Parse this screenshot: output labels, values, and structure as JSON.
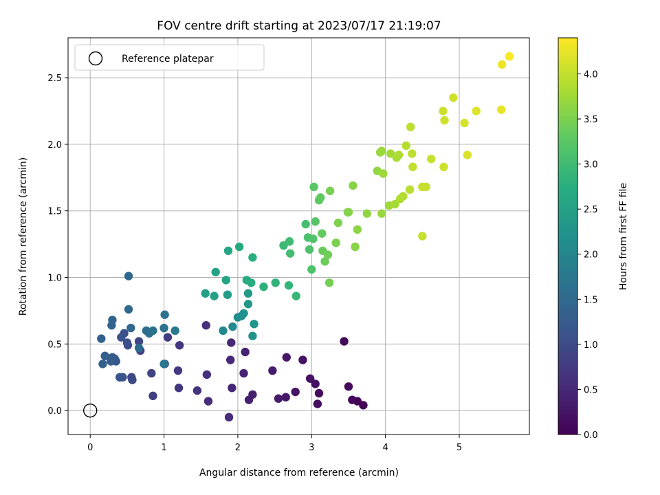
{
  "chart_data": {
    "type": "scatter",
    "title": "FOV centre drift starting at 2023/07/17 21:19:07",
    "xlabel": "Angular distance from reference (arcmin)",
    "ylabel": "Rotation from reference (arcmin)",
    "colorbar_label": "Hours from first FF file",
    "xlim": [
      -0.3,
      5.95
    ],
    "ylim": [
      -0.18,
      2.8
    ],
    "xticks": [
      0,
      1,
      2,
      3,
      4,
      5
    ],
    "yticks": [
      0.0,
      0.5,
      1.0,
      1.5,
      2.0,
      2.5
    ],
    "xtick_labels": [
      "0",
      "1",
      "2",
      "3",
      "4",
      "5"
    ],
    "ytick_labels": [
      "0.0",
      "0.5",
      "1.0",
      "1.5",
      "2.0",
      "2.5"
    ],
    "colorbar_range": [
      0.0,
      4.4
    ],
    "colorbar_ticks": [
      0.0,
      0.5,
      1.0,
      1.5,
      2.0,
      2.5,
      3.0,
      3.5,
      4.0
    ],
    "colorbar_tick_labels": [
      "0.0",
      "0.5",
      "1.0",
      "1.5",
      "2.0",
      "2.5",
      "3.0",
      "3.5",
      "4.0"
    ],
    "colormap": "viridis",
    "grid": true,
    "legend_position": "upper-left",
    "reference": {
      "label": "Reference platepar",
      "x": 0,
      "y": 0,
      "marker": "open-circle"
    },
    "points": [
      [
        3.7,
        0.04,
        0.02
      ],
      [
        3.62,
        0.07,
        0.05
      ],
      [
        3.55,
        0.08,
        0.08
      ],
      [
        3.5,
        0.18,
        0.1
      ],
      [
        3.44,
        0.52,
        0.12
      ],
      [
        3.1,
        0.13,
        0.15
      ],
      [
        3.08,
        0.05,
        0.17
      ],
      [
        3.05,
        0.2,
        0.19
      ],
      [
        2.98,
        0.24,
        0.21
      ],
      [
        2.88,
        0.38,
        0.23
      ],
      [
        2.78,
        0.14,
        0.26
      ],
      [
        2.66,
        0.4,
        0.28
      ],
      [
        2.65,
        0.1,
        0.3
      ],
      [
        2.55,
        0.09,
        0.33
      ],
      [
        2.47,
        0.3,
        0.35
      ],
      [
        2.2,
        0.12,
        0.38
      ],
      [
        2.15,
        0.08,
        0.4
      ],
      [
        2.1,
        0.44,
        0.43
      ],
      [
        2.08,
        0.28,
        0.45
      ],
      [
        1.92,
        0.17,
        0.48
      ],
      [
        1.91,
        0.51,
        0.5
      ],
      [
        1.9,
        0.38,
        0.53
      ],
      [
        1.88,
        -0.05,
        0.55
      ],
      [
        1.6,
        0.07,
        0.58
      ],
      [
        1.58,
        0.27,
        0.6
      ],
      [
        1.57,
        0.64,
        0.63
      ],
      [
        1.45,
        0.15,
        0.66
      ],
      [
        1.21,
        0.49,
        0.69
      ],
      [
        1.2,
        0.17,
        0.72
      ],
      [
        1.19,
        0.3,
        0.75
      ],
      [
        1.05,
        0.55,
        0.78
      ],
      [
        1.01,
        0.35,
        0.81
      ],
      [
        0.85,
        0.11,
        0.84
      ],
      [
        0.83,
        0.28,
        0.87
      ],
      [
        0.68,
        0.45,
        0.9
      ],
      [
        0.66,
        0.52,
        0.93
      ],
      [
        0.57,
        0.23,
        0.96
      ],
      [
        0.56,
        0.25,
        0.99
      ],
      [
        0.51,
        0.49,
        1.02
      ],
      [
        0.5,
        0.51,
        1.05
      ],
      [
        0.46,
        0.58,
        1.08
      ],
      [
        0.44,
        0.25,
        1.11
      ],
      [
        0.42,
        0.55,
        1.14
      ],
      [
        0.4,
        0.25,
        1.17
      ],
      [
        0.35,
        0.37,
        1.2
      ],
      [
        0.33,
        0.39,
        1.23
      ],
      [
        0.3,
        0.4,
        1.26
      ],
      [
        0.28,
        0.37,
        1.29
      ],
      [
        0.2,
        0.41,
        1.32
      ],
      [
        0.17,
        0.35,
        1.35
      ],
      [
        0.15,
        0.54,
        1.38
      ],
      [
        0.29,
        0.64,
        1.41
      ],
      [
        0.3,
        0.68,
        1.44
      ],
      [
        0.55,
        0.62,
        1.47
      ],
      [
        0.52,
        1.01,
        1.5
      ],
      [
        0.52,
        0.76,
        1.53
      ],
      [
        0.66,
        0.47,
        1.56
      ],
      [
        0.76,
        0.6,
        1.59
      ],
      [
        0.8,
        0.58,
        1.62
      ],
      [
        0.85,
        0.6,
        1.65
      ],
      [
        1.0,
        0.62,
        1.68
      ],
      [
        1.01,
        0.72,
        1.71
      ],
      [
        1.0,
        0.35,
        1.74
      ],
      [
        1.15,
        0.6,
        1.77
      ],
      [
        1.8,
        0.6,
        2.05
      ],
      [
        1.93,
        0.63,
        2.1
      ],
      [
        2.0,
        0.7,
        2.14
      ],
      [
        2.05,
        0.71,
        2.18
      ],
      [
        2.08,
        0.73,
        2.22
      ],
      [
        2.2,
        0.56,
        2.26
      ],
      [
        2.22,
        0.65,
        2.3
      ],
      [
        2.14,
        0.8,
        2.34
      ],
      [
        2.14,
        0.88,
        2.38
      ],
      [
        1.86,
        0.87,
        2.42
      ],
      [
        1.56,
        0.88,
        2.46
      ],
      [
        1.68,
        0.86,
        2.5
      ],
      [
        1.7,
        1.04,
        2.54
      ],
      [
        1.84,
        0.98,
        2.58
      ],
      [
        1.87,
        1.2,
        2.62
      ],
      [
        2.02,
        1.23,
        2.66
      ],
      [
        2.12,
        0.98,
        2.7
      ],
      [
        2.18,
        0.96,
        2.74
      ],
      [
        2.2,
        1.15,
        2.78
      ],
      [
        2.35,
        0.93,
        2.82
      ],
      [
        2.51,
        0.96,
        2.86
      ],
      [
        2.69,
        0.94,
        2.9
      ],
      [
        2.79,
        0.86,
        2.94
      ],
      [
        2.62,
        1.24,
        2.98
      ],
      [
        2.7,
        1.27,
        3.02
      ],
      [
        2.71,
        1.18,
        3.05
      ],
      [
        2.92,
        1.4,
        3.08
      ],
      [
        2.95,
        1.3,
        3.11
      ],
      [
        2.97,
        1.21,
        3.14
      ],
      [
        3.0,
        1.06,
        3.17
      ],
      [
        3.02,
        1.29,
        3.2
      ],
      [
        3.05,
        1.42,
        3.23
      ],
      [
        3.03,
        1.68,
        3.26
      ],
      [
        3.1,
        1.58,
        3.29
      ],
      [
        3.12,
        1.6,
        3.32
      ],
      [
        3.14,
        1.33,
        3.35
      ],
      [
        3.15,
        1.2,
        3.38
      ],
      [
        3.18,
        1.12,
        3.41
      ],
      [
        3.22,
        1.17,
        3.44
      ],
      [
        3.24,
        0.96,
        3.47
      ],
      [
        3.25,
        1.65,
        3.5
      ],
      [
        3.33,
        1.26,
        3.52
      ],
      [
        3.36,
        1.41,
        3.54
      ],
      [
        3.49,
        1.49,
        3.56
      ],
      [
        3.5,
        1.49,
        3.58
      ],
      [
        3.56,
        1.69,
        3.6
      ],
      [
        3.59,
        1.23,
        3.62
      ],
      [
        3.62,
        1.36,
        3.64
      ],
      [
        3.75,
        1.48,
        3.66
      ],
      [
        3.89,
        1.8,
        3.68
      ],
      [
        3.93,
        1.94,
        3.7
      ],
      [
        3.95,
        1.48,
        3.72
      ],
      [
        3.95,
        1.95,
        3.74
      ],
      [
        3.97,
        1.78,
        3.76
      ],
      [
        4.05,
        1.54,
        3.78
      ],
      [
        4.07,
        1.93,
        3.8
      ],
      [
        4.13,
        1.55,
        3.82
      ],
      [
        4.15,
        1.9,
        3.84
      ],
      [
        4.18,
        1.92,
        3.86
      ],
      [
        4.2,
        1.59,
        3.88
      ],
      [
        4.24,
        1.61,
        3.9
      ],
      [
        4.28,
        1.99,
        3.92
      ],
      [
        4.33,
        1.66,
        3.94
      ],
      [
        4.34,
        2.13,
        3.96
      ],
      [
        4.36,
        1.93,
        3.98
      ],
      [
        4.37,
        1.83,
        4.0
      ],
      [
        4.5,
        1.68,
        4.02
      ],
      [
        4.5,
        1.31,
        4.03
      ],
      [
        4.55,
        1.68,
        4.04
      ],
      [
        4.62,
        1.89,
        4.05
      ],
      [
        4.78,
        2.25,
        4.07
      ],
      [
        4.79,
        1.83,
        4.08
      ],
      [
        4.8,
        2.18,
        4.09
      ],
      [
        4.92,
        2.35,
        4.1
      ],
      [
        5.07,
        2.16,
        4.13
      ],
      [
        5.11,
        1.92,
        4.16
      ],
      [
        5.23,
        2.25,
        4.19
      ],
      [
        5.57,
        2.26,
        4.25
      ],
      [
        5.58,
        2.6,
        4.3
      ],
      [
        5.68,
        2.66,
        4.38
      ]
    ]
  }
}
